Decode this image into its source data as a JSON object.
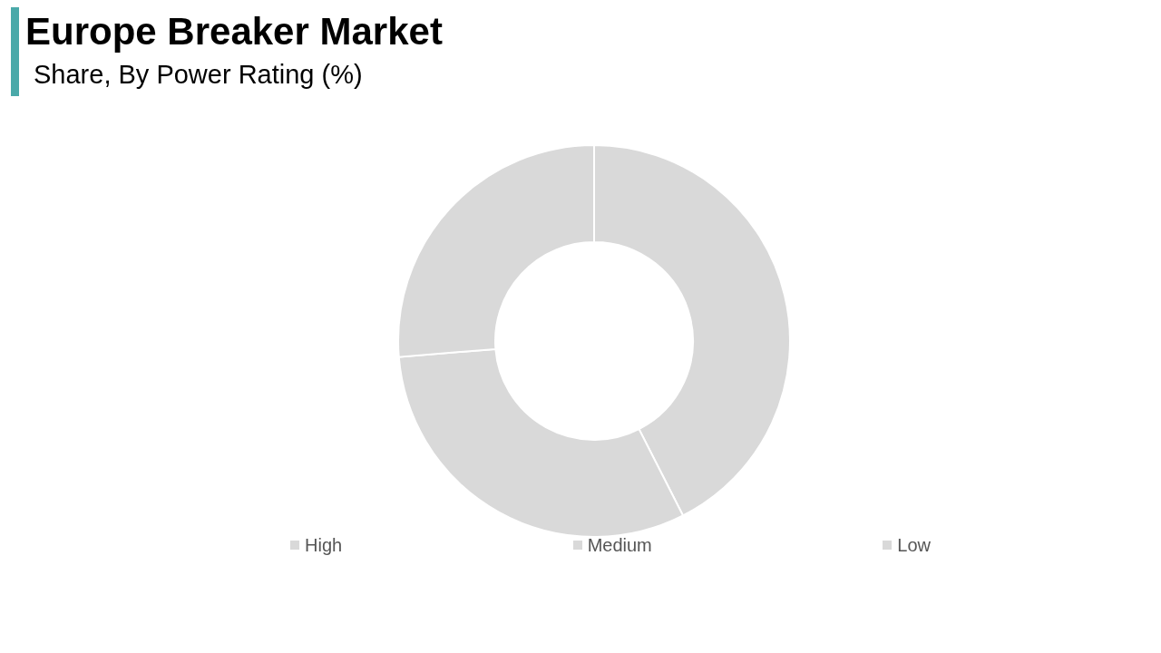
{
  "chart_data": {
    "type": "donut",
    "title": "Europe Breaker Market",
    "subtitle": "Share, By Power Rating (%)",
    "categories": [
      "High",
      "Medium",
      "Low"
    ],
    "values": [
      42.5,
      31.2,
      26.3
    ],
    "colors": [
      "#d9d9d9",
      "#d9d9d9",
      "#d9d9d9"
    ],
    "legend": "bottom"
  }
}
